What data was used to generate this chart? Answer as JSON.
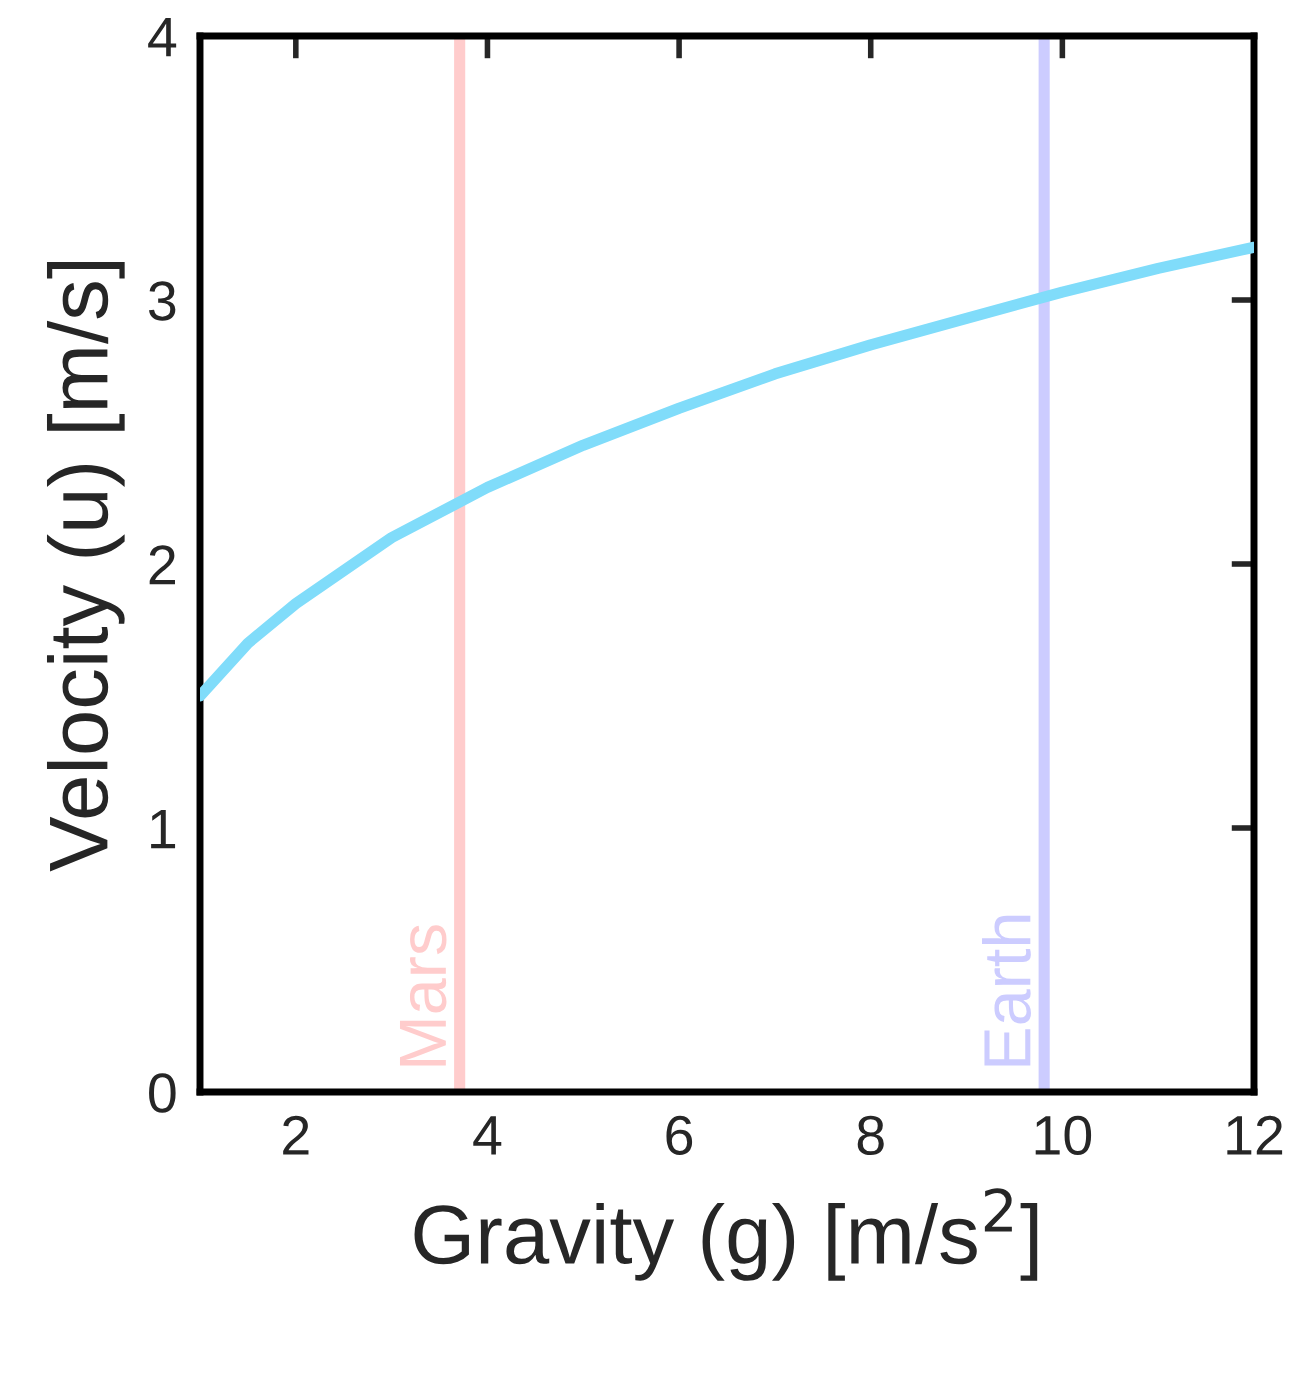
{
  "chart_data": {
    "type": "line",
    "xlabel": "Gravity (g) [m/s$^{2}$]",
    "ylabel": "Velocity (u) [m/s]",
    "x": [
      1,
      1.5,
      2,
      3,
      4,
      5,
      6,
      7,
      8,
      9,
      10,
      11,
      12
    ],
    "series": [
      {
        "color": "#80dcfa",
        "values": [
          1.5,
          1.7,
          1.85,
          2.1,
          2.29,
          2.45,
          2.59,
          2.72,
          2.83,
          2.93,
          3.03,
          3.12,
          3.2
        ]
      }
    ],
    "xlim": [
      1,
      12
    ],
    "xticks": [
      2,
      4,
      6,
      8,
      10,
      12
    ],
    "ylim": [
      0,
      4
    ],
    "yticks": [
      0,
      1,
      2,
      3,
      4
    ],
    "ref_lines": [
      {
        "axis": "x",
        "value": 3.71,
        "label": "Mars",
        "color": "#ffcccc"
      },
      {
        "axis": "x",
        "value": 9.81,
        "label": "Earth",
        "color": "#ccccff"
      }
    ],
    "grid": false,
    "legend": false,
    "marker": "none",
    "line_style": "solid"
  }
}
